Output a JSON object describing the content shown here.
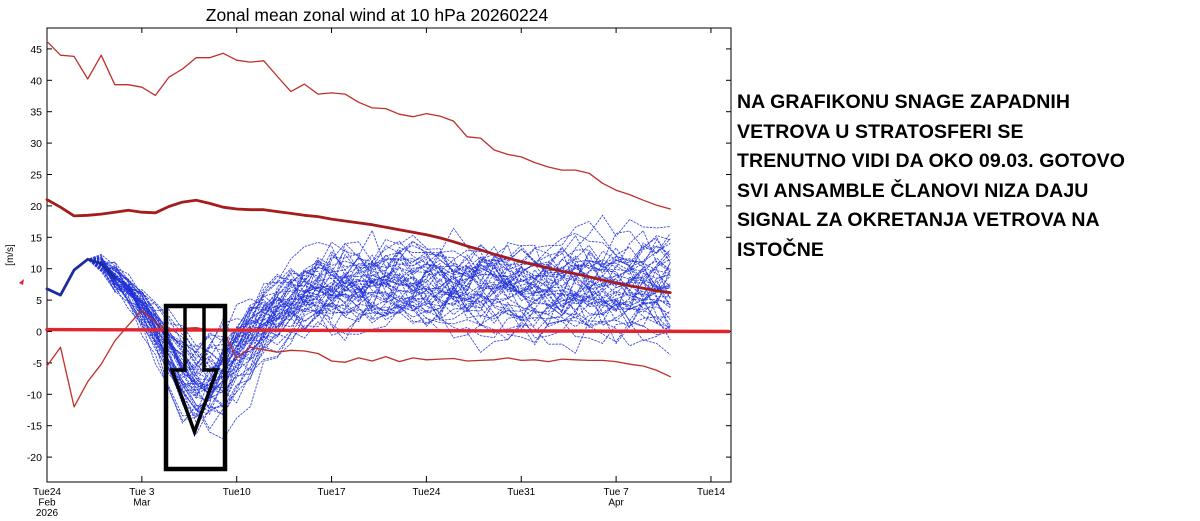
{
  "chart_data": {
    "type": "line",
    "title": "Zonal mean zonal wind at 10 hPa 20260224",
    "ylabel": "[m/s]",
    "xlabel": "",
    "ylim": [
      -23,
      47
    ],
    "xlim_days": [
      0,
      49
    ],
    "yticks": [
      45,
      40,
      35,
      30,
      25,
      20,
      15,
      10,
      5,
      0,
      -5,
      -10,
      -15,
      -20
    ],
    "xticks": [
      {
        "day": 0,
        "lines": [
          "Tue24",
          "Feb",
          "2026"
        ]
      },
      {
        "day": 7,
        "lines": [
          "Tue 3",
          "Mar"
        ]
      },
      {
        "day": 14,
        "lines": [
          "Tue10"
        ]
      },
      {
        "day": 21,
        "lines": [
          "Tue17"
        ]
      },
      {
        "day": 28,
        "lines": [
          "Tue24"
        ]
      },
      {
        "day": 35,
        "lines": [
          "Tue31"
        ]
      },
      {
        "day": 42,
        "lines": [
          "Tue 7",
          "Apr"
        ]
      },
      {
        "day": 49,
        "lines": [
          "Tue14"
        ]
      }
    ],
    "series": [
      {
        "name": "climatological maximum",
        "color": "#c0302a",
        "width": 1.3,
        "x": [
          0,
          1,
          2,
          3,
          4,
          5,
          6,
          7,
          8,
          9,
          10,
          11,
          12,
          13,
          14,
          15,
          16,
          17,
          18,
          19,
          20,
          21,
          22,
          23,
          24,
          25,
          26,
          27,
          28,
          29,
          30,
          31,
          32,
          33,
          34,
          35,
          36,
          37,
          38,
          39,
          40,
          41,
          42,
          43,
          44,
          45,
          46
        ],
        "y": [
          46.2,
          44,
          43.8,
          40.2,
          44,
          39.3,
          39.3,
          38.9,
          37.6,
          40.5,
          41.8,
          43.6,
          43.6,
          44.3,
          43.2,
          42.9,
          43.1,
          40.6,
          38.2,
          39.4,
          37.8,
          38,
          37.8,
          36.5,
          35.6,
          35.5,
          34.6,
          34.2,
          34.7,
          34.3,
          33.5,
          31,
          30.8,
          28.9,
          28.2,
          27.8,
          26.9,
          26.2,
          25.7,
          25.7,
          25.2,
          23.6,
          22.5,
          21.8,
          20.9,
          20.1,
          19.5
        ]
      },
      {
        "name": "climatological mean",
        "color": "#a51c1c",
        "width": 2.8,
        "x": [
          0,
          1,
          2,
          3,
          4,
          5,
          6,
          7,
          8,
          9,
          10,
          11,
          12,
          13,
          14,
          15,
          16,
          17,
          18,
          19,
          20,
          21,
          22,
          23,
          24,
          25,
          26,
          27,
          28,
          29,
          30,
          31,
          32,
          33,
          34,
          35,
          36,
          37,
          38,
          39,
          40,
          41,
          42,
          43,
          44,
          45,
          46
        ],
        "y": [
          21,
          19.8,
          18.4,
          18.5,
          18.7,
          19,
          19.3,
          19,
          18.9,
          19.9,
          20.6,
          20.9,
          20.4,
          19.8,
          19.5,
          19.4,
          19.4,
          19.1,
          18.8,
          18.5,
          18.3,
          17.9,
          17.6,
          17.3,
          17,
          16.6,
          16.2,
          15.8,
          15.4,
          14.9,
          14.3,
          13.6,
          13,
          12.3,
          11.7,
          11.1,
          10.6,
          10.1,
          9.6,
          9.2,
          8.7,
          8.2,
          7.7,
          7.3,
          6.9,
          6.5,
          6.2
        ]
      },
      {
        "name": "climatological minimum",
        "color": "#c0302a",
        "width": 1.3,
        "x": [
          0,
          1,
          2,
          3,
          4,
          5,
          6,
          7,
          8,
          9,
          10,
          11,
          12,
          13,
          14,
          15,
          16,
          17,
          18,
          19,
          20,
          21,
          22,
          23,
          24,
          25,
          26,
          27,
          28,
          29,
          30,
          31,
          32,
          33,
          34,
          35,
          36,
          37,
          38,
          39,
          40,
          41,
          42,
          43,
          44,
          45,
          46
        ],
        "y": [
          -5.5,
          -2.5,
          -12,
          -8,
          -5.2,
          -1.5,
          1,
          3.4,
          1.5,
          0,
          0.5,
          0.6,
          0.2,
          0.1,
          -4.2,
          -2.5,
          -2.9,
          -3.3,
          -3,
          -3.1,
          -3.5,
          -4.7,
          -4.9,
          -4.2,
          -4.7,
          -4,
          -4.8,
          -4.2,
          -4.5,
          -4.4,
          -4.3,
          -4.7,
          -4.6,
          -4.5,
          -4.2,
          -4.6,
          -4.5,
          -4.8,
          -4.4,
          -4.5,
          -4.6,
          -4.6,
          -4.8,
          -5.2,
          -5.5,
          -6.2,
          -7.2
        ]
      },
      {
        "name": "ensemble mean (start)",
        "color": "#1b2d9c",
        "width": 2.8,
        "x": [
          0,
          1,
          2,
          3,
          4,
          5
        ],
        "y": [
          6.8,
          5.8,
          9.8,
          11.5,
          10.8,
          8.6
        ]
      },
      {
        "name": "zero reference line",
        "color": "#e0252f",
        "width": 3.4,
        "x": [
          0,
          50.3
        ],
        "y": [
          0.3,
          0
        ]
      }
    ],
    "ensemble": {
      "name": "ensemble members",
      "color": "#1e2fd8",
      "members": 51,
      "start_values": [
        6.8,
        5.8,
        9.8,
        11.5,
        10.8,
        8.6
      ],
      "minimum_near_day": 11,
      "minimum_value": -21,
      "spread_at_end": [
        -9,
        18.5
      ]
    },
    "annotations": [
      {
        "type": "arrow-box",
        "description": "downward arrow marking wind reversal around 09.03"
      }
    ]
  },
  "annotation": {
    "lines": [
      "NA GRAFIKONU SNAGE ZAPADNIH",
      "VETROVA U STRATOSFERI SE",
      "TRENUTNO VIDI DA OKO 09.03. GOTOVO",
      "SVI ANSAMBLE ČLANOVI NIZA DAJU",
      "SIGNAL ZA OKRETANJA VETROVA NA",
      "ISTOČNE"
    ]
  }
}
